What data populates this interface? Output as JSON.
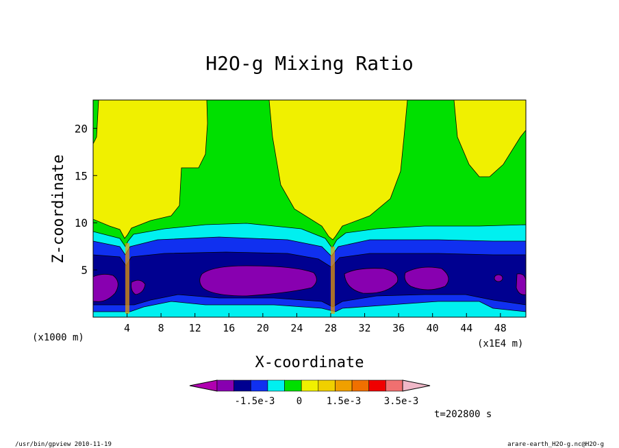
{
  "chart_data": {
    "type": "heatmap",
    "subtype": "filled-contour",
    "title": "H2O-g Mixing Ratio",
    "xlabel": "X-coordinate",
    "ylabel": "Z-coordinate",
    "x_unit": "(x1E4 m)",
    "y_unit": "(x1000 m)",
    "xlim": [
      0,
      51
    ],
    "ylim": [
      0,
      23
    ],
    "x_ticks": [
      4,
      8,
      12,
      16,
      20,
      24,
      28,
      32,
      36,
      40,
      44,
      48
    ],
    "y_ticks": [
      5,
      10,
      15,
      20
    ],
    "time_label": "t=202800 s",
    "colorbar": {
      "colors": [
        "#b000b0",
        "#8800b0",
        "#000090",
        "#1030f0",
        "#00f0f0",
        "#00e000",
        "#f0f000",
        "#f0d000",
        "#f0a000",
        "#f07000",
        "#f00000",
        "#f07070",
        "#f0b8c8"
      ],
      "tick_labels": [
        "-1.5e-3",
        "0",
        "1.5e-3",
        "3.5e-3"
      ],
      "extend": "both"
    },
    "regions_description_levels": [
      "yellow (upper layer)",
      "green (moist transition)",
      "cyan",
      "blue",
      "dark blue",
      "purple (minimum)"
    ]
  },
  "footer": {
    "left": "/usr/bin/gpview  2010-11-19",
    "right": "arare-earth_H2O-g.nc@H2O-g"
  }
}
